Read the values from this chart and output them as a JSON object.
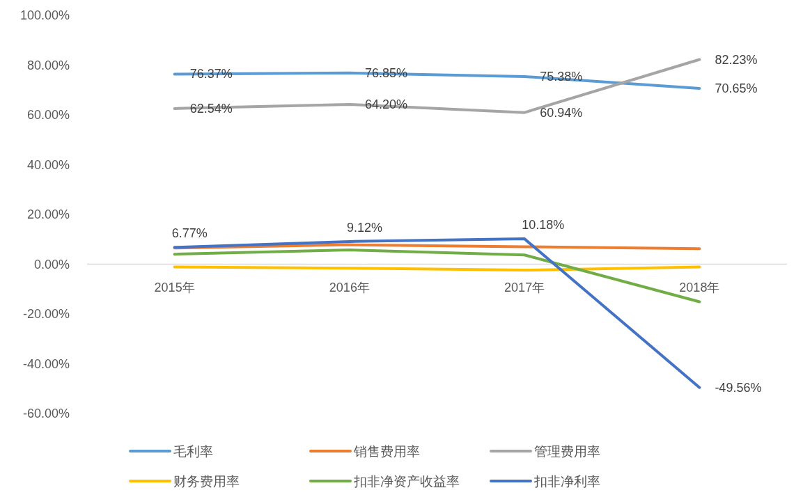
{
  "chart_data": {
    "type": "line",
    "categories": [
      "2015年",
      "2016年",
      "2017年",
      "2018年"
    ],
    "ylim": [
      -60,
      100
    ],
    "yticks": [
      {
        "value": -60,
        "label": "-60.00%"
      },
      {
        "value": -40,
        "label": "-40.00%"
      },
      {
        "value": -20,
        "label": "-20.00%"
      },
      {
        "value": 0,
        "label": "0.00%"
      },
      {
        "value": 20,
        "label": "20.00%"
      },
      {
        "value": 40,
        "label": "40.00%"
      },
      {
        "value": 60,
        "label": "60.00%"
      },
      {
        "value": 80,
        "label": "80.00%"
      },
      {
        "value": 100,
        "label": "100.00%"
      }
    ],
    "legend": "bottom",
    "marker": "none",
    "line_style": "solid",
    "series": [
      {
        "name": "毛利率",
        "color": "#5b9bd5",
        "values": [
          76.37,
          76.85,
          75.38,
          70.65
        ],
        "value_labels": [
          "76.37%",
          "76.85%",
          "75.38%",
          "70.65%"
        ]
      },
      {
        "name": "销售费用率",
        "color": "#ed7d31",
        "values": [
          6.5,
          7.8,
          7.0,
          6.2
        ]
      },
      {
        "name": "管理费用率",
        "color": "#a5a5a5",
        "values": [
          62.54,
          64.2,
          60.94,
          82.23
        ],
        "value_labels": [
          "62.54%",
          "64.20%",
          "60.94%",
          "82.23%"
        ]
      },
      {
        "name": "财务费用率",
        "color": "#ffc000",
        "values": [
          -1.1,
          -1.6,
          -2.4,
          -1.1
        ]
      },
      {
        "name": "扣非净资产收益率",
        "color": "#70ad47",
        "values": [
          4.0,
          5.7,
          3.7,
          -15.1
        ]
      },
      {
        "name": "扣非净利率",
        "color": "#4472c4",
        "values": [
          6.77,
          9.12,
          10.18,
          -49.56
        ],
        "value_labels": [
          "6.77%",
          "9.12%",
          "10.18%",
          "-49.56%"
        ]
      }
    ]
  }
}
